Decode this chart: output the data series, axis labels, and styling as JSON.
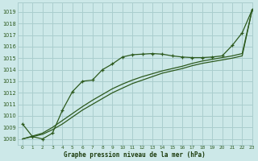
{
  "title": "Graphe pression niveau de la mer (hPa)",
  "bg_color": "#cce8e8",
  "grid_color": "#aacece",
  "line_color": "#2d5a1e",
  "xlabel_color": "#1a3a0a",
  "xlim": [
    -0.5,
    23
  ],
  "ylim": [
    1007.5,
    1019.8
  ],
  "yticks": [
    1008,
    1009,
    1010,
    1011,
    1012,
    1013,
    1014,
    1015,
    1016,
    1017,
    1018,
    1019
  ],
  "xticks": [
    0,
    1,
    2,
    3,
    4,
    5,
    6,
    7,
    8,
    9,
    10,
    11,
    12,
    13,
    14,
    15,
    16,
    17,
    18,
    19,
    20,
    21,
    22,
    23
  ],
  "line_marked_x": [
    0,
    1,
    2,
    3,
    4,
    5,
    6,
    7,
    8,
    9,
    10,
    11,
    12,
    13,
    14,
    15,
    16,
    17,
    18,
    19,
    20,
    21,
    22,
    23
  ],
  "line_marked_y": [
    1009.3,
    1008.2,
    1008.0,
    1008.5,
    1010.5,
    1012.1,
    1013.0,
    1013.1,
    1014.0,
    1014.5,
    1015.1,
    1015.3,
    1015.35,
    1015.4,
    1015.35,
    1015.2,
    1015.1,
    1015.05,
    1015.05,
    1015.1,
    1015.2,
    1016.1,
    1017.2,
    1019.2
  ],
  "line_diag1_x": [
    0,
    1,
    2,
    3,
    4,
    5,
    6,
    7,
    8,
    9,
    10,
    11,
    12,
    13,
    14,
    15,
    16,
    17,
    18,
    19,
    20,
    21,
    22,
    23
  ],
  "line_diag1_y": [
    1008.0,
    1008.2,
    1008.4,
    1008.8,
    1009.3,
    1009.9,
    1010.5,
    1011.0,
    1011.5,
    1012.0,
    1012.4,
    1012.8,
    1013.1,
    1013.4,
    1013.7,
    1013.9,
    1014.1,
    1014.35,
    1014.55,
    1014.7,
    1014.85,
    1015.0,
    1015.2,
    1019.2
  ],
  "line_diag2_x": [
    0,
    1,
    2,
    3,
    4,
    5,
    6,
    7,
    8,
    9,
    10,
    11,
    12,
    13,
    14,
    15,
    16,
    17,
    18,
    19,
    20,
    21,
    22,
    23
  ],
  "line_diag2_y": [
    1008.0,
    1008.25,
    1008.5,
    1009.0,
    1009.6,
    1010.2,
    1010.8,
    1011.35,
    1011.85,
    1012.35,
    1012.75,
    1013.1,
    1013.4,
    1013.65,
    1013.9,
    1014.1,
    1014.3,
    1014.55,
    1014.75,
    1014.9,
    1015.05,
    1015.2,
    1015.4,
    1019.2
  ]
}
